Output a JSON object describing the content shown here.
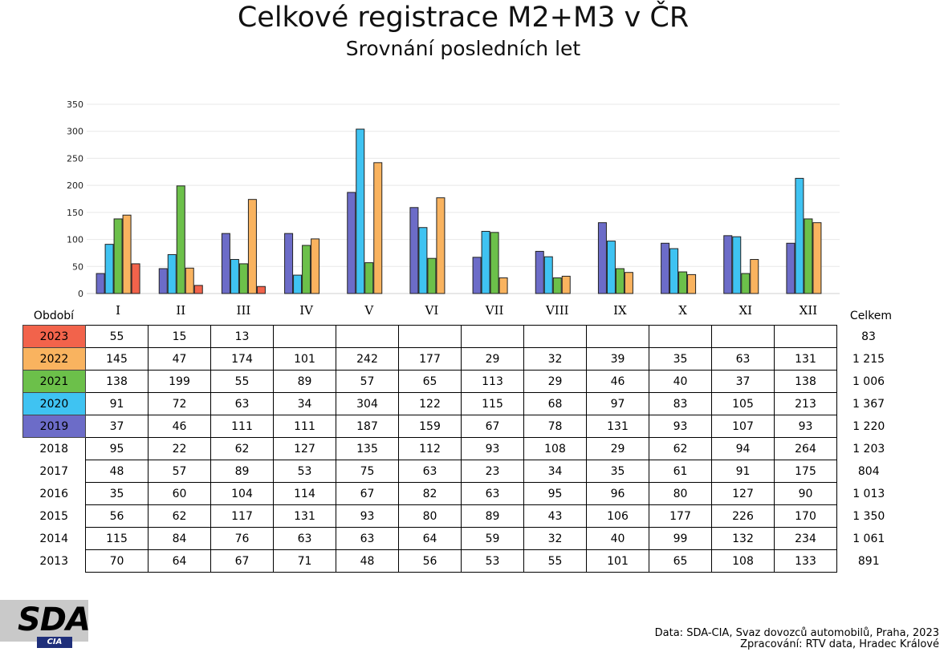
{
  "title": "Celkové registrace M2+M3 v ČR",
  "subtitle": "Srovnání posledních let",
  "table": {
    "period_header": "Období",
    "total_header": "Celkem",
    "months": [
      "I",
      "II",
      "III",
      "IV",
      "V",
      "VI",
      "VII",
      "VIII",
      "IX",
      "X",
      "XI",
      "XII"
    ],
    "rows": [
      {
        "year": "2023",
        "color": "#f2634b",
        "values": [
          "55",
          "15",
          "13",
          "",
          "",
          "",
          "",
          "",
          "",
          "",
          "",
          ""
        ],
        "total": "83"
      },
      {
        "year": "2022",
        "color": "#f9b35f",
        "values": [
          "145",
          "47",
          "174",
          "101",
          "242",
          "177",
          "29",
          "32",
          "39",
          "35",
          "63",
          "131"
        ],
        "total": "1 215"
      },
      {
        "year": "2021",
        "color": "#6cc04a",
        "values": [
          "138",
          "199",
          "55",
          "89",
          "57",
          "65",
          "113",
          "29",
          "46",
          "40",
          "37",
          "138"
        ],
        "total": "1 006"
      },
      {
        "year": "2020",
        "color": "#3fc3f2",
        "values": [
          "91",
          "72",
          "63",
          "34",
          "304",
          "122",
          "115",
          "68",
          "97",
          "83",
          "105",
          "213"
        ],
        "total": "1 367"
      },
      {
        "year": "2019",
        "color": "#6c6cc8",
        "values": [
          "37",
          "46",
          "111",
          "111",
          "187",
          "159",
          "67",
          "78",
          "131",
          "93",
          "107",
          "93"
        ],
        "total": "1 220"
      },
      {
        "year": "2018",
        "color": "",
        "values": [
          "95",
          "22",
          "62",
          "127",
          "135",
          "112",
          "93",
          "108",
          "29",
          "62",
          "94",
          "264"
        ],
        "total": "1 203"
      },
      {
        "year": "2017",
        "color": "",
        "values": [
          "48",
          "57",
          "89",
          "53",
          "75",
          "63",
          "23",
          "34",
          "35",
          "61",
          "91",
          "175"
        ],
        "total": "804"
      },
      {
        "year": "2016",
        "color": "",
        "values": [
          "35",
          "60",
          "104",
          "114",
          "67",
          "82",
          "63",
          "95",
          "96",
          "80",
          "127",
          "90"
        ],
        "total": "1 013"
      },
      {
        "year": "2015",
        "color": "",
        "values": [
          "56",
          "62",
          "117",
          "131",
          "93",
          "80",
          "89",
          "43",
          "106",
          "177",
          "226",
          "170"
        ],
        "total": "1 350"
      },
      {
        "year": "2014",
        "color": "",
        "values": [
          "115",
          "84",
          "76",
          "63",
          "63",
          "64",
          "59",
          "32",
          "40",
          "99",
          "132",
          "234"
        ],
        "total": "1 061"
      },
      {
        "year": "2013",
        "color": "",
        "values": [
          "70",
          "64",
          "67",
          "71",
          "48",
          "56",
          "53",
          "55",
          "101",
          "65",
          "108",
          "133"
        ],
        "total": "891"
      }
    ]
  },
  "chart_data": {
    "type": "bar",
    "title": "Celkové registrace M2+M3 v ČR",
    "subtitle": "Srovnání posledních let",
    "categories": [
      "I",
      "II",
      "III",
      "IV",
      "V",
      "VI",
      "VII",
      "VIII",
      "IX",
      "X",
      "XI",
      "XII"
    ],
    "ylim": [
      0,
      350
    ],
    "yticks": [
      0,
      50,
      100,
      150,
      200,
      250,
      300,
      350
    ],
    "grid": true,
    "series": [
      {
        "name": "2019",
        "color": "#6c6cc8",
        "values": [
          37,
          46,
          111,
          111,
          187,
          159,
          67,
          78,
          131,
          93,
          107,
          93
        ]
      },
      {
        "name": "2020",
        "color": "#3fc3f2",
        "values": [
          91,
          72,
          63,
          34,
          304,
          122,
          115,
          68,
          97,
          83,
          105,
          213
        ]
      },
      {
        "name": "2021",
        "color": "#6cc04a",
        "values": [
          138,
          199,
          55,
          89,
          57,
          65,
          113,
          29,
          46,
          40,
          37,
          138
        ]
      },
      {
        "name": "2022",
        "color": "#f9b35f",
        "values": [
          145,
          47,
          174,
          101,
          242,
          177,
          29,
          32,
          39,
          35,
          63,
          131
        ]
      },
      {
        "name": "2023",
        "color": "#f2634b",
        "values": [
          55,
          15,
          13,
          null,
          null,
          null,
          null,
          null,
          null,
          null,
          null,
          null
        ]
      }
    ]
  },
  "logo": {
    "main": "SDA",
    "sub": "CIA"
  },
  "source": {
    "line1": "Data: SDA-CIA, Svaz dovozců automobilů, Praha, 2023",
    "line2": "Zpracování: RTV data, Hradec Králové"
  }
}
